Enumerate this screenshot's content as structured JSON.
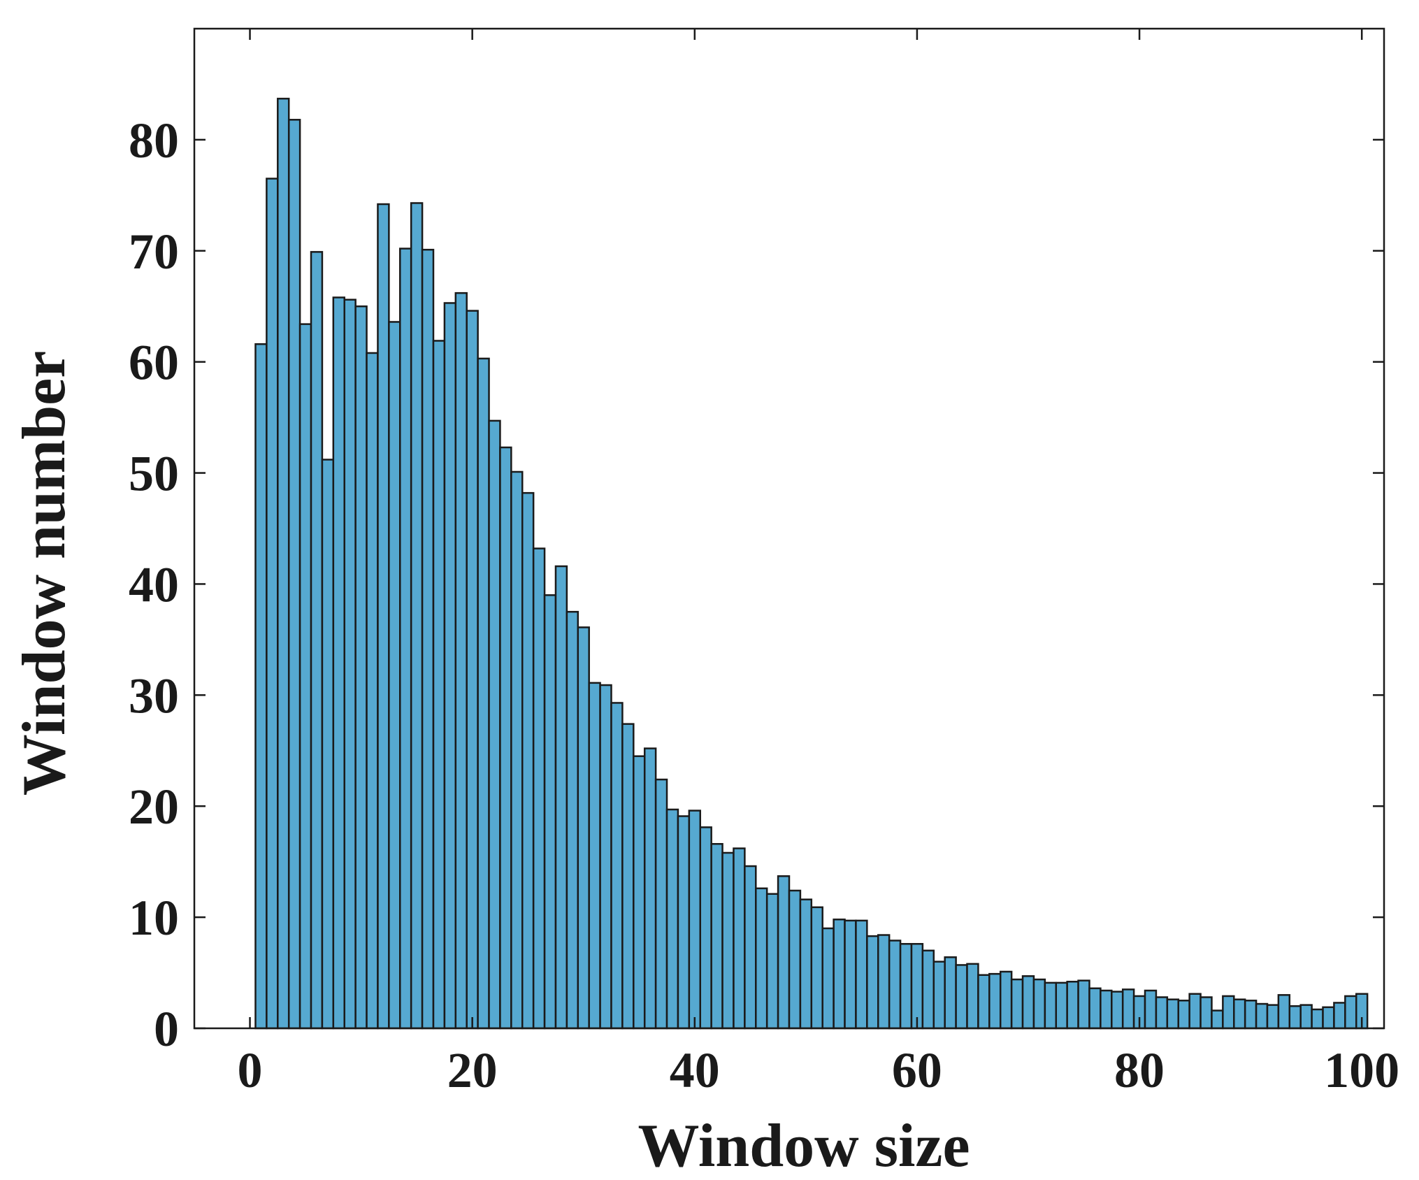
{
  "chart_data": {
    "type": "bar",
    "title": "",
    "xlabel": "Window size",
    "ylabel": "Window number",
    "xlim": [
      -5,
      102
    ],
    "ylim": [
      0,
      90
    ],
    "xticks": [
      0,
      20,
      40,
      60,
      80,
      100
    ],
    "yticks": [
      0,
      10,
      20,
      30,
      40,
      50,
      60,
      70,
      80
    ],
    "bar_width": 1,
    "bar_color": "#56a9d1",
    "edge_color": "#1a1a1a",
    "grid": false,
    "legend": "none",
    "x": [
      1,
      2,
      3,
      4,
      5,
      6,
      7,
      8,
      9,
      10,
      11,
      12,
      13,
      14,
      15,
      16,
      17,
      18,
      19,
      20,
      21,
      22,
      23,
      24,
      25,
      26,
      27,
      28,
      29,
      30,
      31,
      32,
      33,
      34,
      35,
      36,
      37,
      38,
      39,
      40,
      41,
      42,
      43,
      44,
      45,
      46,
      47,
      48,
      49,
      50,
      51,
      52,
      53,
      54,
      55,
      56,
      57,
      58,
      59,
      60,
      61,
      62,
      63,
      64,
      65,
      66,
      67,
      68,
      69,
      70,
      71,
      72,
      73,
      74,
      75,
      76,
      77,
      78,
      79,
      80,
      81,
      82,
      83,
      84,
      85,
      86,
      87,
      88,
      89,
      90,
      91,
      92,
      93,
      94,
      95,
      96,
      97,
      98,
      99,
      100
    ],
    "values": [
      61.6,
      76.5,
      83.7,
      81.8,
      63.4,
      69.9,
      51.2,
      65.8,
      65.6,
      65.0,
      60.8,
      74.2,
      63.6,
      70.2,
      74.3,
      70.1,
      61.9,
      65.3,
      66.2,
      64.6,
      60.3,
      54.7,
      52.3,
      50.1,
      48.2,
      43.2,
      39.0,
      41.6,
      37.5,
      36.1,
      31.1,
      30.9,
      29.3,
      27.4,
      24.5,
      25.2,
      22.4,
      19.7,
      19.1,
      19.6,
      18.1,
      16.6,
      15.8,
      16.2,
      14.6,
      12.6,
      12.1,
      13.7,
      12.4,
      11.6,
      10.9,
      9.0,
      9.8,
      9.7,
      9.7,
      8.3,
      8.4,
      7.9,
      7.6,
      7.6,
      7.0,
      6.0,
      6.4,
      5.7,
      5.8,
      4.8,
      4.9,
      5.1,
      4.4,
      4.7,
      4.4,
      4.1,
      4.1,
      4.2,
      4.3,
      3.6,
      3.4,
      3.3,
      3.5,
      2.9,
      3.4,
      2.8,
      2.6,
      2.5,
      3.1,
      2.8,
      1.6,
      2.9,
      2.6,
      2.5,
      2.2,
      2.1,
      3.0,
      2.0,
      2.1,
      1.7,
      1.9,
      2.3,
      2.9,
      3.1
    ]
  }
}
